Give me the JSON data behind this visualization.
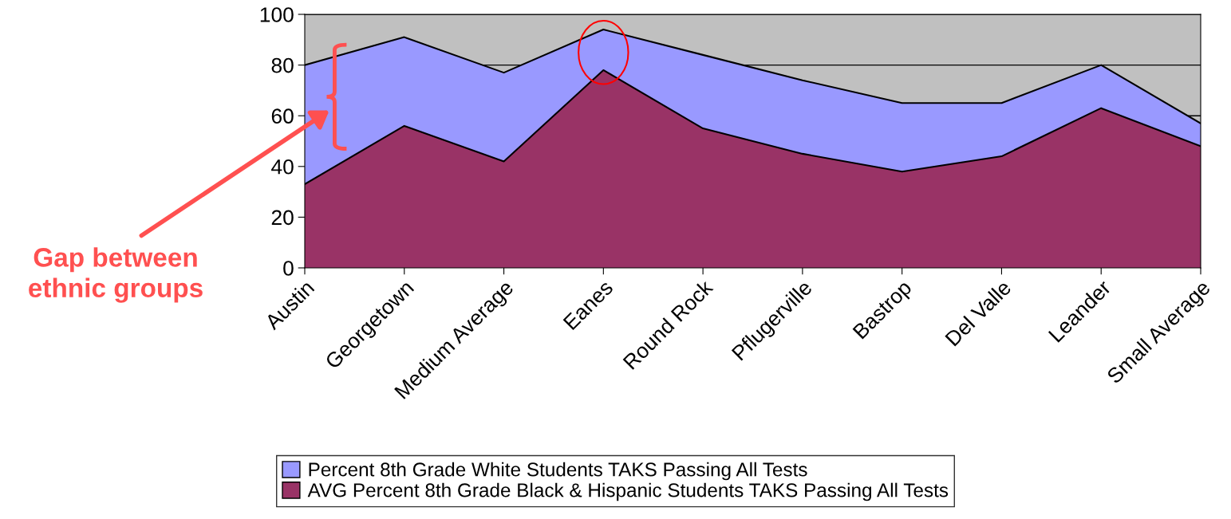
{
  "chart_data": {
    "type": "area",
    "categories": [
      "Austin",
      "Georgetown",
      "Medium Average",
      "Eanes",
      "Round Rock",
      "Pflugerville",
      "Bastrop",
      "Del Valle",
      "Leander",
      "Small Average"
    ],
    "series": [
      {
        "name": "Percent 8th Grade White Students TAKS Passing All Tests",
        "color": "#9999ff",
        "values": [
          80,
          91,
          77,
          94,
          84,
          74,
          65,
          65,
          80,
          57
        ]
      },
      {
        "name": "AVG Percent 8th Grade Black & Hispanic Students TAKS Passing All Tests",
        "color": "#993366",
        "values": [
          33,
          56,
          42,
          78,
          55,
          45,
          38,
          44,
          63,
          48
        ]
      }
    ],
    "ylim": [
      0,
      100
    ],
    "yticks": [
      0,
      20,
      40,
      60,
      80,
      100
    ],
    "grid": "y",
    "legend": "bottom",
    "annotations": [
      "Gap between\nethnic groups"
    ]
  }
}
